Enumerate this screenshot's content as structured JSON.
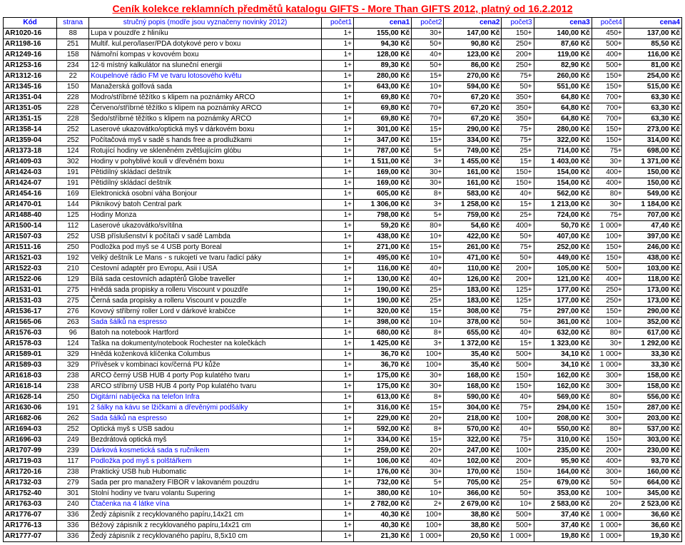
{
  "title": "Ceník kolekce reklamních předmětů katalogu GIFTS - More Than GIFTS 2012, platný od 16.2.2012",
  "columns": [
    "Kód",
    "strana",
    "stručný popis (modře jsou vyznačeny novinky 2012)",
    "počet1",
    "cena1",
    "počet2",
    "cena2",
    "počet3",
    "cena3",
    "počet4",
    "cena4"
  ],
  "rows": [
    {
      "c": "AR1020-16",
      "p": "88",
      "d": "Lupa v pouzdře z hliníku",
      "n": false,
      "q1": "1+",
      "v1": "155,00 Kč",
      "q2": "30+",
      "v2": "147,00 Kč",
      "q3": "150+",
      "v3": "140,00 Kč",
      "q4": "450+",
      "v4": "137,00 Kč"
    },
    {
      "c": "AR1198-16",
      "p": "251",
      "d": "Multif. kul.pero/laser/PDA dotykové pero v boxu",
      "n": false,
      "q1": "1+",
      "v1": "94,30 Kč",
      "q2": "50+",
      "v2": "90,80 Kč",
      "q3": "250+",
      "v3": "87,60 Kč",
      "q4": "500+",
      "v4": "85,50 Kč"
    },
    {
      "c": "AR1249-16",
      "p": "158",
      "d": "Námořní kompas v kovovém boxu",
      "n": false,
      "q1": "1+",
      "v1": "128,00 Kč",
      "q2": "40+",
      "v2": "123,00 Kč",
      "q3": "200+",
      "v3": "119,00 Kč",
      "q4": "400+",
      "v4": "116,00 Kč"
    },
    {
      "c": "AR1253-16",
      "p": "234",
      "d": "12-ti místný kalkulátor na sluneční energii",
      "n": false,
      "q1": "1+",
      "v1": "89,30 Kč",
      "q2": "50+",
      "v2": "86,00 Kč",
      "q3": "250+",
      "v3": "82,90 Kč",
      "q4": "500+",
      "v4": "81,00 Kč"
    },
    {
      "c": "AR1312-16",
      "p": "22",
      "d": "Koupelnové rádio FM ve tvaru lotosového květu",
      "n": true,
      "q1": "1+",
      "v1": "280,00 Kč",
      "q2": "15+",
      "v2": "270,00 Kč",
      "q3": "75+",
      "v3": "260,00 Kč",
      "q4": "150+",
      "v4": "254,00 Kč"
    },
    {
      "c": "AR1345-16",
      "p": "150",
      "d": "Manažerská golfová sada",
      "n": false,
      "q1": "1+",
      "v1": "643,00 Kč",
      "q2": "10+",
      "v2": "594,00 Kč",
      "q3": "50+",
      "v3": "551,00 Kč",
      "q4": "150+",
      "v4": "515,00 Kč"
    },
    {
      "c": "AR1351-04",
      "p": "228",
      "d": "Modro/stříbrné těžítko s klipem na poznámky ARCO",
      "n": false,
      "q1": "1+",
      "v1": "69,80 Kč",
      "q2": "70+",
      "v2": "67,20 Kč",
      "q3": "350+",
      "v3": "64,80 Kč",
      "q4": "700+",
      "v4": "63,30 Kč"
    },
    {
      "c": "AR1351-05",
      "p": "228",
      "d": "Červeno/stříbrné těžítko s klipem na poznámky ARCO",
      "n": false,
      "q1": "1+",
      "v1": "69,80 Kč",
      "q2": "70+",
      "v2": "67,20 Kč",
      "q3": "350+",
      "v3": "64,80 Kč",
      "q4": "700+",
      "v4": "63,30 Kč"
    },
    {
      "c": "AR1351-15",
      "p": "228",
      "d": "Šedo/stříbrné těžítko s klipem na poznámky ARCO",
      "n": false,
      "q1": "1+",
      "v1": "69,80 Kč",
      "q2": "70+",
      "v2": "67,20 Kč",
      "q3": "350+",
      "v3": "64,80 Kč",
      "q4": "700+",
      "v4": "63,30 Kč"
    },
    {
      "c": "AR1358-14",
      "p": "252",
      "d": "Laserové ukazovátko/optická myš v dárkovém boxu",
      "n": false,
      "q1": "1+",
      "v1": "301,00 Kč",
      "q2": "15+",
      "v2": "290,00 Kč",
      "q3": "75+",
      "v3": "280,00 Kč",
      "q4": "150+",
      "v4": "273,00 Kč"
    },
    {
      "c": "AR1359-04",
      "p": "252",
      "d": "Počítačová myš v sadě s hands free a prodlužkami",
      "n": false,
      "q1": "1+",
      "v1": "347,00 Kč",
      "q2": "15+",
      "v2": "334,00 Kč",
      "q3": "75+",
      "v3": "322,00 Kč",
      "q4": "150+",
      "v4": "314,00 Kč"
    },
    {
      "c": "AR1373-18",
      "p": "124",
      "d": "Rotující hodiny ve skleněném zvětšujícím glóbu",
      "n": false,
      "q1": "1+",
      "v1": "787,00 Kč",
      "q2": "5+",
      "v2": "749,00 Kč",
      "q3": "25+",
      "v3": "714,00 Kč",
      "q4": "75+",
      "v4": "698,00 Kč"
    },
    {
      "c": "AR1409-03",
      "p": "302",
      "d": "Hodiny v pohyblivé kouli v dřevěném boxu",
      "n": false,
      "q1": "1+",
      "v1": "1 511,00 Kč",
      "q2": "3+",
      "v2": "1 455,00 Kč",
      "q3": "15+",
      "v3": "1 403,00 Kč",
      "q4": "30+",
      "v4": "1 371,00 Kč"
    },
    {
      "c": "AR1424-03",
      "p": "191",
      "d": "Pětidílný skládací deštník",
      "n": false,
      "q1": "1+",
      "v1": "169,00 Kč",
      "q2": "30+",
      "v2": "161,00 Kč",
      "q3": "150+",
      "v3": "154,00 Kč",
      "q4": "400+",
      "v4": "150,00 Kč"
    },
    {
      "c": "AR1424-07",
      "p": "191",
      "d": "Pětidílný skládací deštník",
      "n": false,
      "q1": "1+",
      "v1": "169,00 Kč",
      "q2": "30+",
      "v2": "161,00 Kč",
      "q3": "150+",
      "v3": "154,00 Kč",
      "q4": "400+",
      "v4": "150,00 Kč"
    },
    {
      "c": "AR1454-16",
      "p": "169",
      "d": "Elektronická osobní váha Bonjour",
      "n": false,
      "q1": "1+",
      "v1": "605,00 Kč",
      "q2": "8+",
      "v2": "583,00 Kč",
      "q3": "40+",
      "v3": "562,00 Kč",
      "q4": "80+",
      "v4": "549,00 Kč"
    },
    {
      "c": "AR1470-01",
      "p": "144",
      "d": "Piknikový batoh Central park",
      "n": false,
      "q1": "1+",
      "v1": "1 306,00 Kč",
      "q2": "3+",
      "v2": "1 258,00 Kč",
      "q3": "15+",
      "v3": "1 213,00 Kč",
      "q4": "30+",
      "v4": "1 184,00 Kč"
    },
    {
      "c": "AR1488-40",
      "p": "125",
      "d": "Hodiny Monza",
      "n": false,
      "q1": "1+",
      "v1": "798,00 Kč",
      "q2": "5+",
      "v2": "759,00 Kč",
      "q3": "25+",
      "v3": "724,00 Kč",
      "q4": "75+",
      "v4": "707,00 Kč"
    },
    {
      "c": "AR1500-14",
      "p": "112",
      "d": "Laserové ukazovátko/svítilna",
      "n": false,
      "q1": "1+",
      "v1": "59,20 Kč",
      "q2": "80+",
      "v2": "54,60 Kč",
      "q3": "400+",
      "v3": "50,70 Kč",
      "q4": "1 000+",
      "v4": "47,40 Kč"
    },
    {
      "c": "AR1507-03",
      "p": "252",
      "d": "USB příslušenství k počítači v sadě Lambda",
      "n": false,
      "q1": "1+",
      "v1": "438,00 Kč",
      "q2": "10+",
      "v2": "422,00 Kč",
      "q3": "50+",
      "v3": "407,00 Kč",
      "q4": "100+",
      "v4": "397,00 Kč"
    },
    {
      "c": "AR1511-16",
      "p": "250",
      "d": "Podložka pod myš se 4 USB porty Boreal",
      "n": false,
      "q1": "1+",
      "v1": "271,00 Kč",
      "q2": "15+",
      "v2": "261,00 Kč",
      "q3": "75+",
      "v3": "252,00 Kč",
      "q4": "150+",
      "v4": "246,00 Kč"
    },
    {
      "c": "AR1521-03",
      "p": "192",
      "d": "Velký deštník Le Mans - s rukojetí ve tvaru řadicí páky",
      "n": false,
      "q1": "1+",
      "v1": "495,00 Kč",
      "q2": "10+",
      "v2": "471,00 Kč",
      "q3": "50+",
      "v3": "449,00 Kč",
      "q4": "150+",
      "v4": "438,00 Kč"
    },
    {
      "c": "AR1522-03",
      "p": "210",
      "d": "Cestovní adaptér pro Evropu, Asii i USA",
      "n": false,
      "q1": "1+",
      "v1": "116,00 Kč",
      "q2": "40+",
      "v2": "110,00 Kč",
      "q3": "200+",
      "v3": "105,00 Kč",
      "q4": "500+",
      "v4": "103,00 Kč"
    },
    {
      "c": "AR1522-06",
      "p": "129",
      "d": "Bílá sada cestovních adaptérů Globe traveller",
      "n": false,
      "q1": "1+",
      "v1": "130,00 Kč",
      "q2": "40+",
      "v2": "126,00 Kč",
      "q3": "200+",
      "v3": "121,00 Kč",
      "q4": "400+",
      "v4": "118,00 Kč"
    },
    {
      "c": "AR1531-01",
      "p": "275",
      "d": "Hnědá sada propisky a rolleru Viscount v pouzdře",
      "n": false,
      "q1": "1+",
      "v1": "190,00 Kč",
      "q2": "25+",
      "v2": "183,00 Kč",
      "q3": "125+",
      "v3": "177,00 Kč",
      "q4": "250+",
      "v4": "173,00 Kč"
    },
    {
      "c": "AR1531-03",
      "p": "275",
      "d": "Černá sada propisky a rolleru Viscount v pouzdře",
      "n": false,
      "q1": "1+",
      "v1": "190,00 Kč",
      "q2": "25+",
      "v2": "183,00 Kč",
      "q3": "125+",
      "v3": "177,00 Kč",
      "q4": "250+",
      "v4": "173,00 Kč"
    },
    {
      "c": "AR1536-17",
      "p": "276",
      "d": "Kovový stříbrný roller Lord v dárkové krabičce",
      "n": false,
      "q1": "1+",
      "v1": "320,00 Kč",
      "q2": "15+",
      "v2": "308,00 Kč",
      "q3": "75+",
      "v3": "297,00 Kč",
      "q4": "150+",
      "v4": "290,00 Kč"
    },
    {
      "c": "AR1565-06",
      "p": "263",
      "d": "Sada šálků na espresso",
      "n": true,
      "q1": "1+",
      "v1": "398,00 Kč",
      "q2": "10+",
      "v2": "378,00 Kč",
      "q3": "50+",
      "v3": "361,00 Kč",
      "q4": "100+",
      "v4": "352,00 Kč"
    },
    {
      "c": "AR1576-03",
      "p": "96",
      "d": "Batoh na notebook Hartford",
      "n": false,
      "q1": "1+",
      "v1": "680,00 Kč",
      "q2": "8+",
      "v2": "655,00 Kč",
      "q3": "40+",
      "v3": "632,00 Kč",
      "q4": "80+",
      "v4": "617,00 Kč"
    },
    {
      "c": "AR1578-03",
      "p": "124",
      "d": "Taška na dokumenty/notebook Rochester na kolečkách",
      "n": false,
      "q1": "1+",
      "v1": "1 425,00 Kč",
      "q2": "3+",
      "v2": "1 372,00 Kč",
      "q3": "15+",
      "v3": "1 323,00 Kč",
      "q4": "30+",
      "v4": "1 292,00 Kč"
    },
    {
      "c": "AR1589-01",
      "p": "329",
      "d": "Hnědá koženková klíčenka Columbus",
      "n": false,
      "q1": "1+",
      "v1": "36,70 Kč",
      "q2": "100+",
      "v2": "35,40 Kč",
      "q3": "500+",
      "v3": "34,10 Kč",
      "q4": "1 000+",
      "v4": "33,30 Kč"
    },
    {
      "c": "AR1589-03",
      "p": "329",
      "d": "Přívěsek v kombinaci kov/černá PU kůže",
      "n": false,
      "q1": "1+",
      "v1": "36,70 Kč",
      "q2": "100+",
      "v2": "35,40 Kč",
      "q3": "500+",
      "v3": "34,10 Kč",
      "q4": "1 000+",
      "v4": "33,30 Kč"
    },
    {
      "c": "AR1618-03",
      "p": "238",
      "d": "ARCO černý USB HUB 4 porty Pop kulatého tvaru",
      "n": false,
      "q1": "1+",
      "v1": "175,00 Kč",
      "q2": "30+",
      "v2": "168,00 Kč",
      "q3": "150+",
      "v3": "162,00 Kč",
      "q4": "300+",
      "v4": "158,00 Kč"
    },
    {
      "c": "AR1618-14",
      "p": "238",
      "d": "ARCO stříbrný USB HUB 4 porty Pop kulatého tvaru",
      "n": false,
      "q1": "1+",
      "v1": "175,00 Kč",
      "q2": "30+",
      "v2": "168,00 Kč",
      "q3": "150+",
      "v3": "162,00 Kč",
      "q4": "300+",
      "v4": "158,00 Kč"
    },
    {
      "c": "AR1628-14",
      "p": "250",
      "d": "Digitární nabíječka na telefon Infra",
      "n": true,
      "q1": "1+",
      "v1": "613,00 Kč",
      "q2": "8+",
      "v2": "590,00 Kč",
      "q3": "40+",
      "v3": "569,00 Kč",
      "q4": "80+",
      "v4": "556,00 Kč"
    },
    {
      "c": "AR1630-06",
      "p": "191",
      "d": "2 šálky na kávu se lžičkami a dřevěnými podšálky",
      "n": true,
      "q1": "1+",
      "v1": "316,00 Kč",
      "q2": "15+",
      "v2": "304,00 Kč",
      "q3": "75+",
      "v3": "294,00 Kč",
      "q4": "150+",
      "v4": "287,00 Kč"
    },
    {
      "c": "AR1682-06",
      "p": "262",
      "d": "Sada šálků na espresso",
      "n": true,
      "q1": "1+",
      "v1": "229,00 Kč",
      "q2": "20+",
      "v2": "218,00 Kč",
      "q3": "100+",
      "v3": "208,00 Kč",
      "q4": "300+",
      "v4": "203,00 Kč"
    },
    {
      "c": "AR1694-03",
      "p": "252",
      "d": "Optická myš s USB sadou",
      "n": false,
      "q1": "1+",
      "v1": "592,00 Kč",
      "q2": "8+",
      "v2": "570,00 Kč",
      "q3": "40+",
      "v3": "550,00 Kč",
      "q4": "80+",
      "v4": "537,00 Kč"
    },
    {
      "c": "AR1696-03",
      "p": "249",
      "d": "Bezdrátová optická myš",
      "n": false,
      "q1": "1+",
      "v1": "334,00 Kč",
      "q2": "15+",
      "v2": "322,00 Kč",
      "q3": "75+",
      "v3": "310,00 Kč",
      "q4": "150+",
      "v4": "303,00 Kč"
    },
    {
      "c": "AR1707-99",
      "p": "239",
      "d": "Dárková kosmetická sada s ručníkem",
      "n": true,
      "q1": "1+",
      "v1": "259,00 Kč",
      "q2": "20+",
      "v2": "247,00 Kč",
      "q3": "100+",
      "v3": "235,00 Kč",
      "q4": "200+",
      "v4": "230,00 Kč"
    },
    {
      "c": "AR1719-03",
      "p": "117",
      "d": "Podložka pod myš s polštářkem",
      "n": true,
      "q1": "1+",
      "v1": "106,00 Kč",
      "q2": "40+",
      "v2": "102,00 Kč",
      "q3": "200+",
      "v3": "95,90 Kč",
      "q4": "400+",
      "v4": "93,70 Kč"
    },
    {
      "c": "AR1720-16",
      "p": "238",
      "d": "Praktický USB hub Hubomatic",
      "n": false,
      "q1": "1+",
      "v1": "176,00 Kč",
      "q2": "30+",
      "v2": "170,00 Kč",
      "q3": "150+",
      "v3": "164,00 Kč",
      "q4": "300+",
      "v4": "160,00 Kč"
    },
    {
      "c": "AR1732-03",
      "p": "279",
      "d": "Sada per pro manažery FIBOR v lakovaném pouzdru",
      "n": false,
      "q1": "1+",
      "v1": "732,00 Kč",
      "q2": "5+",
      "v2": "705,00 Kč",
      "q3": "25+",
      "v3": "679,00 Kč",
      "q4": "50+",
      "v4": "664,00 Kč"
    },
    {
      "c": "AR1752-40",
      "p": "301",
      "d": "Stolní hodiny ve tvaru volantu Supering",
      "n": false,
      "q1": "1+",
      "v1": "380,00 Kč",
      "q2": "10+",
      "v2": "366,00 Kč",
      "q3": "50+",
      "v3": "353,00 Kč",
      "q4": "100+",
      "v4": "345,00 Kč"
    },
    {
      "c": "AR1763-03",
      "p": "240",
      "d": "Čtačenka na 4 látke vína",
      "n": true,
      "q1": "1+",
      "v1": "2 782,00 Kč",
      "q2": "2+",
      "v2": "2 679,00 Kč",
      "q3": "10+",
      "v3": "2 583,00 Kč",
      "q4": "20+",
      "v4": "2 523,00 Kč"
    },
    {
      "c": "AR1776-07",
      "p": "336",
      "d": "Žedý zápisník z recyklovaného papíru,14x21 cm",
      "n": false,
      "q1": "1+",
      "v1": "40,30 Kč",
      "q2": "100+",
      "v2": "38,80 Kč",
      "q3": "500+",
      "v3": "37,40 Kč",
      "q4": "1 000+",
      "v4": "36,60 Kč"
    },
    {
      "c": "AR1776-13",
      "p": "336",
      "d": "Béžový zápisník z recyklovaného papíru,14x21 cm",
      "n": false,
      "q1": "1+",
      "v1": "40,30 Kč",
      "q2": "100+",
      "v2": "38,80 Kč",
      "q3": "500+",
      "v3": "37,40 Kč",
      "q4": "1 000+",
      "v4": "36,60 Kč"
    },
    {
      "c": "AR1777-07",
      "p": "336",
      "d": "Žedý zápisník z recyklovaného papíru, 8,5x10 cm",
      "n": false,
      "q1": "1+",
      "v1": "21,30 Kč",
      "q2": "1 000+",
      "v2": "20,50 Kč",
      "q3": "1 000+",
      "v3": "19,80 Kč",
      "q4": "1 000+",
      "v4": "19,30 Kč"
    }
  ]
}
